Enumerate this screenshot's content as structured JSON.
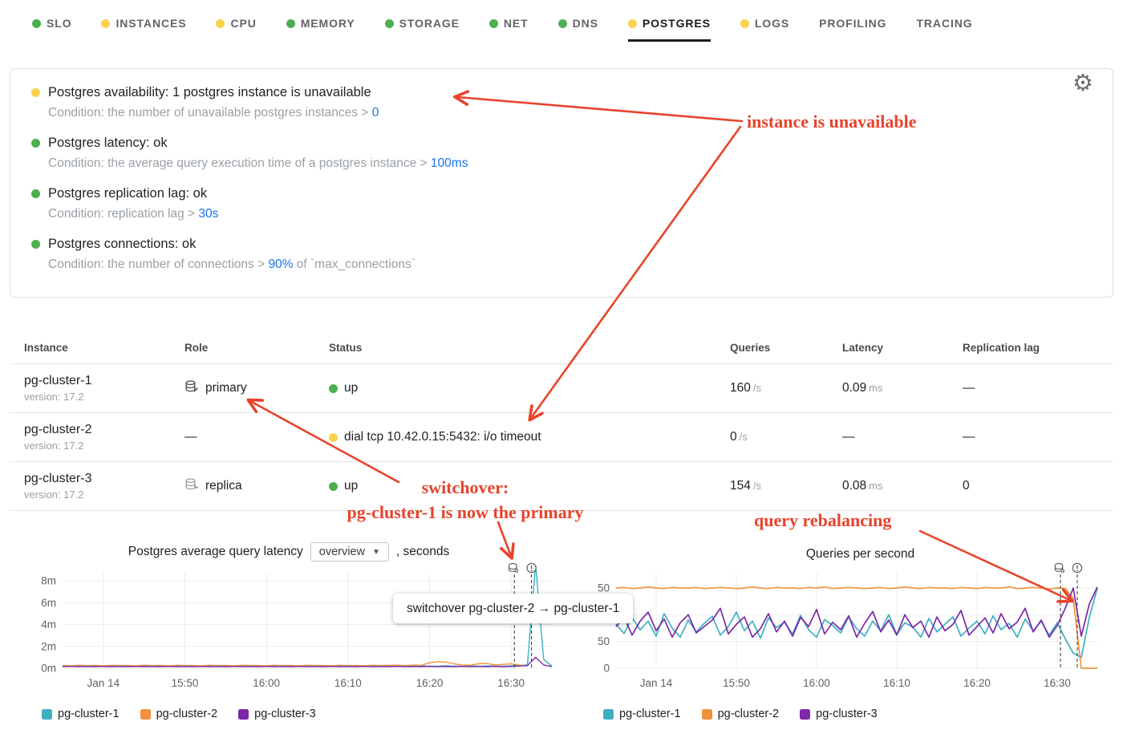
{
  "colors": {
    "green": "#4CAF50",
    "yellow": "#FBD24E",
    "annotation_red": "#E8432C",
    "link_blue": "#1A73E8",
    "teal": "#3FAFC3",
    "orange": "#F0933C",
    "purple": "#7D28A8"
  },
  "nav": {
    "tabs": [
      {
        "label": "SLO",
        "dot": "green"
      },
      {
        "label": "INSTANCES",
        "dot": "yellow"
      },
      {
        "label": "CPU",
        "dot": "yellow"
      },
      {
        "label": "MEMORY",
        "dot": "green"
      },
      {
        "label": "STORAGE",
        "dot": "green"
      },
      {
        "label": "NET",
        "dot": "green"
      },
      {
        "label": "DNS",
        "dot": "green"
      },
      {
        "label": "POSTGRES",
        "dot": "yellow",
        "active": true
      },
      {
        "label": "LOGS",
        "dot": "yellow"
      },
      {
        "label": "PROFILING"
      },
      {
        "label": "TRACING"
      }
    ]
  },
  "alerts": {
    "gear_icon": "settings-gear-icon",
    "items": [
      {
        "dot": "yellow",
        "title": "Postgres availability: 1 postgres instance is unavailable",
        "condition_prefix": "Condition: the number of unavailable postgres instances > ",
        "condition_value": "0",
        "condition_suffix": ""
      },
      {
        "dot": "green",
        "title": "Postgres latency: ok",
        "condition_prefix": "Condition: the average query execution time of a postgres instance > ",
        "condition_value": "100ms",
        "condition_suffix": ""
      },
      {
        "dot": "green",
        "title": "Postgres replication lag: ok",
        "condition_prefix": "Condition: replication lag > ",
        "condition_value": "30s",
        "condition_suffix": ""
      },
      {
        "dot": "green",
        "title": "Postgres connections: ok",
        "condition_prefix": "Condition: the number of connections > ",
        "condition_value": "90%",
        "condition_suffix": " of `max_connections`"
      }
    ]
  },
  "table": {
    "headers": [
      "Instance",
      "Role",
      "Status",
      "Queries",
      "Latency",
      "Replication lag"
    ],
    "rows": [
      {
        "instance": "pg-cluster-1",
        "version": "version: 17.2",
        "role": "primary",
        "role_icon": "database-edit-icon",
        "status_dot": "green",
        "status": "up",
        "queries": "160",
        "queries_unit": "/s",
        "latency": "0.09",
        "latency_unit": "ms",
        "replication_lag": "—"
      },
      {
        "instance": "pg-cluster-2",
        "version": "version: 17.2",
        "role": "—",
        "role_icon": "",
        "status_dot": "yellow",
        "status": "dial tcp 10.42.0.15:5432: i/o timeout",
        "queries": "0",
        "queries_unit": "/s",
        "latency": "—",
        "latency_unit": "",
        "replication_lag": "—"
      },
      {
        "instance": "pg-cluster-3",
        "version": "version: 17.2",
        "role": "replica",
        "role_icon": "database-replica-icon",
        "status_dot": "green",
        "status": "up",
        "queries": "154",
        "queries_unit": "/s",
        "latency": "0.08",
        "latency_unit": "ms",
        "replication_lag": "0"
      }
    ]
  },
  "tooltip": {
    "text": "switchover pg-cluster-2 → pg-cluster-1"
  },
  "annotations": [
    {
      "text": "instance is unavailable"
    },
    {
      "line1": "switchover:",
      "line2": "pg-cluster-1 is now the primary"
    },
    {
      "text": "query rebalancing"
    }
  ],
  "chart_data": [
    {
      "type": "line",
      "title": "Postgres average query latency",
      "title_dropdown": "overview",
      "title_suffix": ", seconds",
      "x_start": "15:35",
      "x_end": "16:35",
      "x_step_minutes": 1,
      "xticks": [
        {
          "label": "Jan 14",
          "minute": 5
        },
        {
          "label": "15:50",
          "minute": 15
        },
        {
          "label": "16:00",
          "minute": 25
        },
        {
          "label": "16:10",
          "minute": 35
        },
        {
          "label": "16:20",
          "minute": 45
        },
        {
          "label": "16:30",
          "minute": 55
        }
      ],
      "ylim": [
        0,
        0.008
      ],
      "yticks": [
        {
          "label": "0m",
          "v": 0
        },
        {
          "label": "2m",
          "v": 0.002
        },
        {
          "label": "4m",
          "v": 0.004
        },
        {
          "label": "6m",
          "v": 0.006
        },
        {
          "label": "8m",
          "v": 0.008
        }
      ],
      "grid": true,
      "legend_position": "bottom",
      "events": [
        {
          "icon": "database-event-icon",
          "minute": 55.4
        },
        {
          "icon": "incident-event-icon",
          "minute": 57.5
        }
      ],
      "series": [
        {
          "name": "pg-cluster-1",
          "color": "#3FAFC3",
          "values": [
            0.0002,
            0.00018,
            0.00022,
            0.00019,
            0.00021,
            0.0002,
            0.00018,
            0.00022,
            0.0002,
            0.00018,
            0.00022,
            0.00019,
            0.00021,
            0.0002,
            0.00018,
            0.00022,
            0.0002,
            0.00018,
            0.00022,
            0.00019,
            0.00021,
            0.0002,
            0.00018,
            0.00022,
            0.0002,
            0.00018,
            0.00022,
            0.00019,
            0.00021,
            0.0002,
            0.00018,
            0.00022,
            0.0002,
            0.00018,
            0.00022,
            0.00019,
            0.00021,
            0.0002,
            0.00018,
            0.00022,
            0.0002,
            0.00018,
            0.00022,
            0.00019,
            0.00021,
            0.0002,
            0.00018,
            0.00022,
            0.0002,
            0.00018,
            0.00022,
            0.00019,
            0.00021,
            0.0002,
            0.00018,
            0.00022,
            0.00025,
            0.0003,
            0.0095,
            0.0008,
            0.0002
          ]
        },
        {
          "name": "pg-cluster-2",
          "color": "#F0933C",
          "values": [
            0.00025,
            0.00022,
            0.00028,
            0.00024,
            0.00026,
            0.00023,
            0.00027,
            0.00025,
            0.00025,
            0.00022,
            0.00028,
            0.00024,
            0.00026,
            0.00023,
            0.00027,
            0.00025,
            0.00025,
            0.00022,
            0.00028,
            0.00024,
            0.00026,
            0.00023,
            0.00027,
            0.00025,
            0.00025,
            0.00022,
            0.00028,
            0.00024,
            0.00026,
            0.00023,
            0.00027,
            0.00025,
            0.00025,
            0.00022,
            0.00028,
            0.00024,
            0.00026,
            0.00023,
            0.00027,
            0.00025,
            0.00026,
            0.00028,
            0.00024,
            0.0003,
            0.00027,
            0.0005,
            0.0006,
            0.00055,
            0.0004,
            0.0003,
            0.00028,
            0.0004,
            0.00045,
            0.0003,
            0.00035,
            0.0004,
            0.0003,
            0.0002,
            null,
            null,
            null
          ]
        },
        {
          "name": "pg-cluster-3",
          "color": "#7D28A8",
          "values": [
            0.00015,
            0.00017,
            0.00014,
            0.00016,
            0.00015,
            0.00017,
            0.00014,
            0.00016,
            0.00015,
            0.00017,
            0.00014,
            0.00016,
            0.00015,
            0.00017,
            0.00014,
            0.00016,
            0.00015,
            0.00017,
            0.00014,
            0.00016,
            0.00015,
            0.00017,
            0.00014,
            0.00016,
            0.00015,
            0.00017,
            0.00014,
            0.00016,
            0.00015,
            0.00017,
            0.00014,
            0.00016,
            0.00015,
            0.00017,
            0.00014,
            0.00016,
            0.00015,
            0.00017,
            0.00014,
            0.00016,
            0.00015,
            0.00017,
            0.00014,
            0.00016,
            0.00015,
            0.00017,
            0.00014,
            0.00016,
            0.00015,
            0.00017,
            0.00014,
            0.00016,
            0.00015,
            0.00017,
            0.00014,
            0.00016,
            0.0002,
            0.00025,
            0.001,
            0.0003,
            0.00015
          ]
        }
      ]
    },
    {
      "type": "line",
      "title": "Queries per second",
      "x_start": "15:35",
      "x_end": "16:35",
      "x_step_minutes": 1,
      "xticks": [
        {
          "label": "Jan 14",
          "minute": 5
        },
        {
          "label": "15:50",
          "minute": 15
        },
        {
          "label": "16:00",
          "minute": 25
        },
        {
          "label": "16:10",
          "minute": 35
        },
        {
          "label": "16:20",
          "minute": 45
        },
        {
          "label": "16:30",
          "minute": 55
        }
      ],
      "ylim": [
        0,
        172
      ],
      "yticks": [
        {
          "label": "0",
          "v": 0
        },
        {
          "label": "50",
          "v": 50
        },
        {
          "label": "100",
          "v": 100
        },
        {
          "label": "150",
          "v": 150
        }
      ],
      "grid": true,
      "legend_position": "bottom",
      "events": [
        {
          "icon": "database-event-icon",
          "minute": 55.4
        },
        {
          "icon": "incident-event-icon",
          "minute": 57.5
        }
      ],
      "series": [
        {
          "name": "pg-cluster-1",
          "color": "#3FAFC3",
          "values": [
            82,
            65,
            95,
            72,
            88,
            60,
            102,
            75,
            58,
            90,
            68,
            84,
            97,
            62,
            78,
            105,
            70,
            88,
            56,
            94,
            76,
            86,
            64,
            99,
            72,
            58,
            91,
            80,
            66,
            96,
            74,
            60,
            88,
            70,
            100,
            63,
            85,
            77,
            58,
            93,
            68,
            82,
            96,
            60,
            75,
            88,
            64,
            98,
            72,
            84,
            58,
            92,
            70,
            88,
            62,
            85,
            55,
            28,
            20,
            95,
            150
          ]
        },
        {
          "name": "pg-cluster-2",
          "color": "#F0933C",
          "values": [
            150,
            151,
            149,
            150,
            152,
            150,
            149,
            151,
            150,
            150,
            151,
            149,
            150,
            151,
            150,
            149,
            150,
            152,
            150,
            149,
            151,
            150,
            150,
            149,
            151,
            150,
            152,
            149,
            150,
            151,
            150,
            149,
            150,
            151,
            149,
            150,
            152,
            150,
            149,
            151,
            150,
            150,
            149,
            151,
            150,
            149,
            151,
            150,
            150,
            152,
            149,
            150,
            151,
            150,
            148,
            150,
            149,
            130,
            0,
            0,
            0
          ]
        },
        {
          "name": "pg-cluster-3",
          "color": "#7D28A8",
          "values": [
            78,
            95,
            62,
            88,
            105,
            70,
            92,
            58,
            85,
            100,
            66,
            78,
            90,
            112,
            64,
            82,
            96,
            58,
            74,
            102,
            68,
            88,
            60,
            95,
            78,
            110,
            64,
            86,
            72,
            98,
            58,
            84,
            106,
            68,
            90,
            62,
            100,
            76,
            88,
            58,
            96,
            70,
            82,
            108,
            62,
            78,
            94,
            66,
            102,
            74,
            86,
            112,
            68,
            90,
            58,
            80,
            112,
            150,
            60,
            120,
            152
          ]
        }
      ]
    }
  ]
}
